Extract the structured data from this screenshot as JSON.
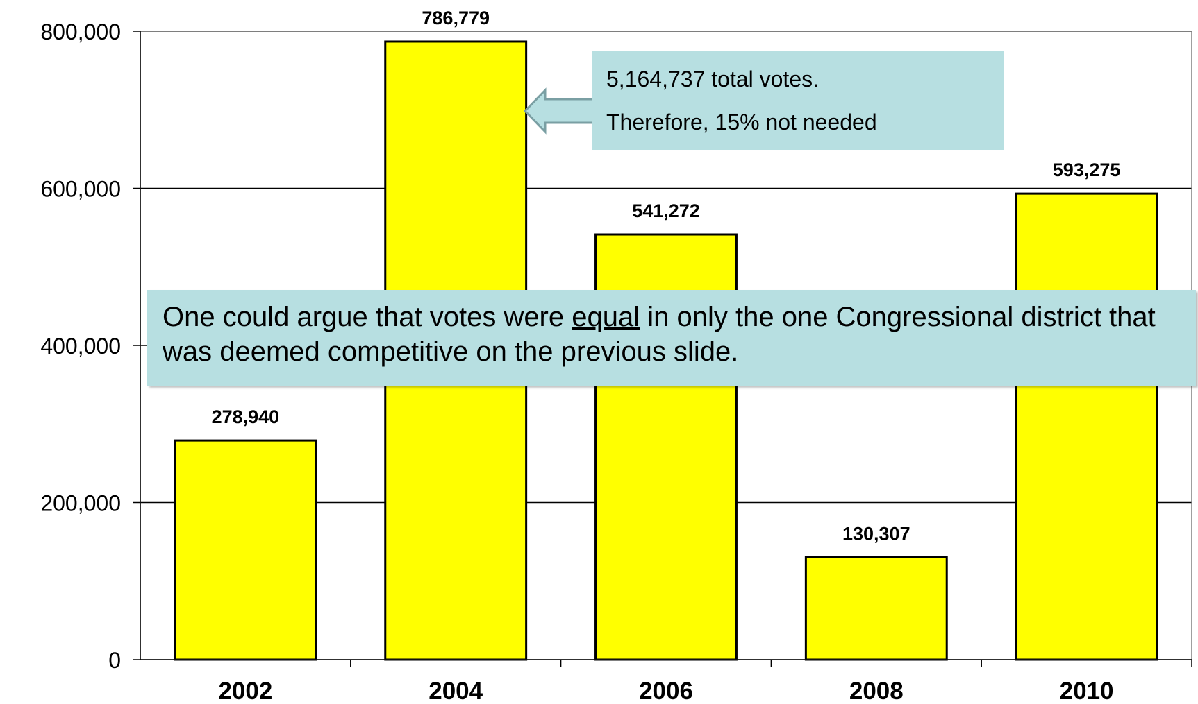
{
  "chart_data": {
    "type": "bar",
    "categories": [
      "2002",
      "2004",
      "2006",
      "2008",
      "2010"
    ],
    "values": [
      278940,
      786779,
      541272,
      130307,
      593275
    ],
    "data_labels": [
      "278,940",
      "786,779",
      "541,272",
      "130,307",
      "593,275"
    ],
    "ylim": [
      0,
      800000
    ],
    "yticks": [
      0,
      200000,
      400000,
      600000,
      800000
    ],
    "ytick_labels": [
      "0",
      "200,000",
      "400,000",
      "600,000",
      "800,000"
    ],
    "grid": true,
    "title": "",
    "xlabel": "",
    "ylabel": ""
  },
  "colors": {
    "bar_fill": "#ffff00",
    "callout_fill": "#b7dfe1",
    "gridline": "#000000"
  },
  "callout_total": {
    "line1": "5,164,737 total votes.",
    "line2": "Therefore, 15% not needed",
    "arrow_icon": "left-arrow-icon"
  },
  "callout_argument": {
    "text_before": "One could argue that votes were ",
    "emphasis": "equal",
    "text_after": " in only the one Congressional district that was deemed competitive on the previous slide."
  }
}
